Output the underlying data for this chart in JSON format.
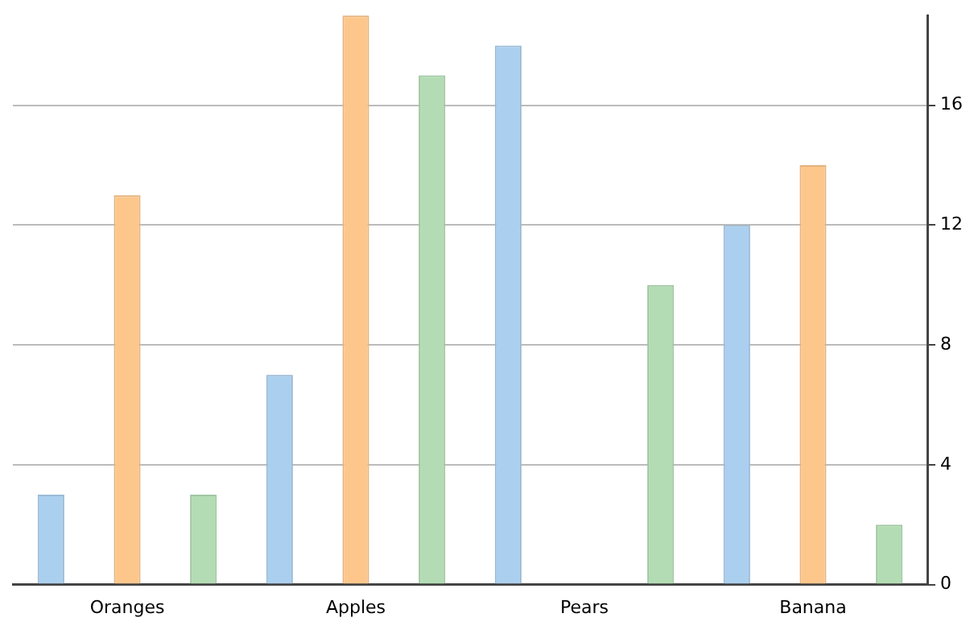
{
  "chart_data": {
    "type": "bar",
    "categories": [
      "Oranges",
      "Apples",
      "Pears",
      "Banana"
    ],
    "series": [
      {
        "color": "#abcfee",
        "values": [
          3,
          7,
          18,
          12
        ]
      },
      {
        "color": "#fdc78c",
        "values": [
          13,
          19,
          null,
          14
        ]
      },
      {
        "color": "#b3dcb4",
        "values": [
          3,
          17,
          10,
          2
        ]
      }
    ],
    "ylim": [
      0,
      19
    ],
    "yticks": [
      0,
      4,
      8,
      12,
      16
    ],
    "grid": "y",
    "legend": false
  }
}
